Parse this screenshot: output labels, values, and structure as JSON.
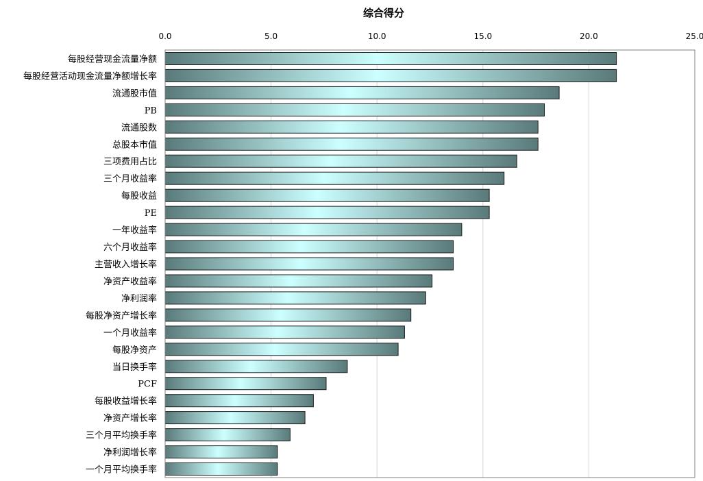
{
  "chart_data": {
    "type": "bar",
    "orientation": "horizontal",
    "title": "综合得分",
    "xlim": [
      0,
      25
    ],
    "x_ticks": [
      "0.0",
      "5.0",
      "10.0",
      "15.0",
      "20.0",
      "25.0"
    ],
    "x_axis_position": "top",
    "grid": "vertical",
    "bar_color": "#7fb7b7",
    "bar_highlight_color": "#ccffff",
    "bar_edge_color": "#5a7a7a",
    "categories": [
      "每股经营现金流量净额",
      "每股经营活动现金流量净额增长率",
      "流通股市值",
      "PB",
      "流通股数",
      "总股本市值",
      "三项费用占比",
      "三个月收益率",
      "每股收益",
      "PE",
      "一年收益率",
      "六个月收益率",
      "主营收入增长率",
      "净资产收益率",
      "净利润率",
      "每股净资产增长率",
      "一个月收益率",
      "每股净资产",
      "当日换手率",
      "PCF",
      "每股收益增长率",
      "净资产增长率",
      "三个月平均换手率",
      "净利润增长率",
      "一个月平均换手率"
    ],
    "values": [
      21.3,
      21.3,
      18.6,
      17.9,
      17.6,
      17.6,
      16.6,
      16.0,
      15.3,
      15.3,
      14.0,
      13.6,
      13.6,
      12.6,
      12.3,
      11.6,
      11.3,
      11.0,
      8.6,
      7.6,
      7.0,
      6.6,
      5.9,
      5.3,
      5.3
    ]
  }
}
